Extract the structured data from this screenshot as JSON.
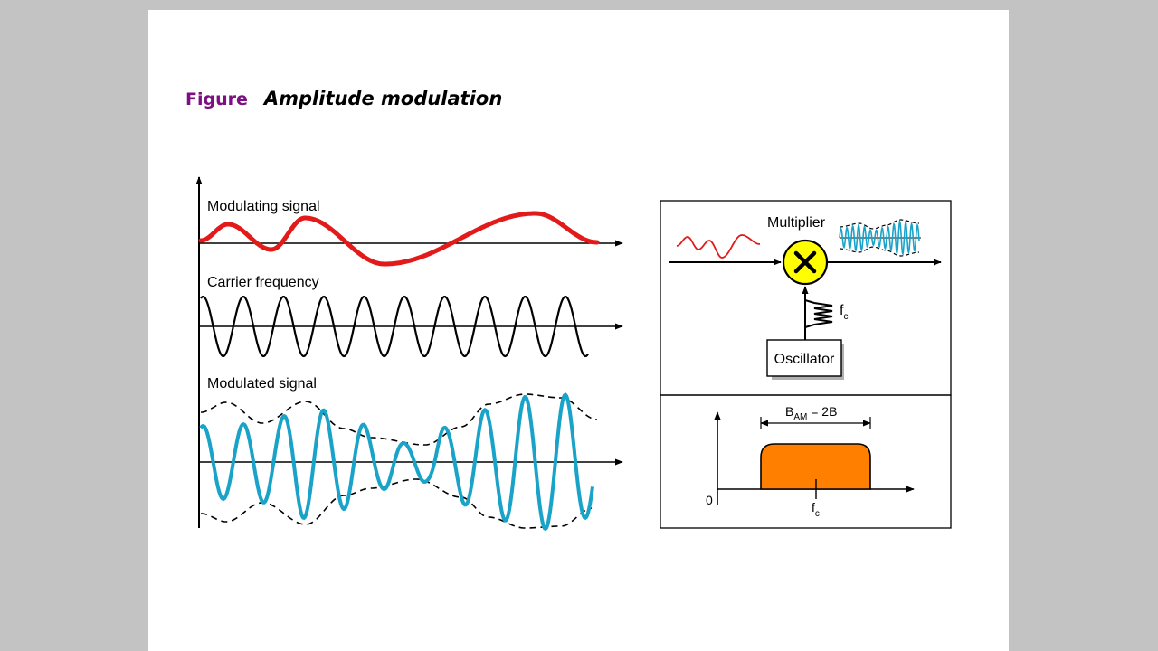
{
  "caption": {
    "label": "Figure",
    "title": "Amplitude modulation"
  },
  "waveforms": {
    "modulating_label": "Modulating signal",
    "carrier_label": "Carrier frequency",
    "modulated_label": "Modulated signal"
  },
  "block_diagram": {
    "multiplier_label": "Multiplier",
    "oscillator_label": "Oscillator",
    "fc_main": "f",
    "fc_sub": "c"
  },
  "spectrum": {
    "bandwidth_main": "B",
    "bandwidth_sub": "AM",
    "bandwidth_rest": " = 2B",
    "origin_label": "0",
    "fc_main": "f",
    "fc_sub": "c"
  },
  "colors": {
    "modulating": "#e21a1a",
    "carrier": "#000000",
    "modulated": "#1aa3c8",
    "multiplier_fill": "#ffff00",
    "spectrum_fill": "#ff8000",
    "caption_label": "#7b0f83"
  }
}
